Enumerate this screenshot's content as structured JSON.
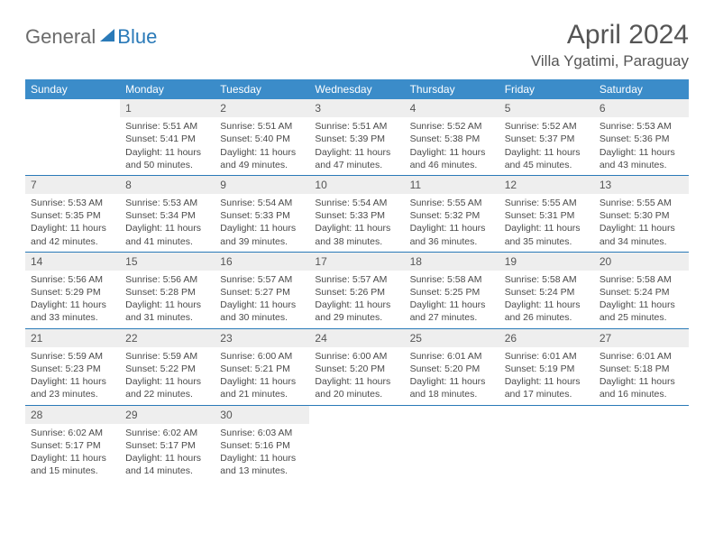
{
  "brand": {
    "part1": "General",
    "part2": "Blue"
  },
  "title": "April 2024",
  "location": "Villa Ygatimi, Paraguay",
  "colors": {
    "header_bg": "#3b8cc9",
    "header_text": "#ffffff",
    "row_divider": "#2a7ab8",
    "daynum_bg": "#eeeeee",
    "text": "#4a4a4a",
    "brand_gray": "#6b6b6b",
    "brand_blue": "#2a7ab8",
    "page_bg": "#ffffff"
  },
  "typography": {
    "title_fontsize": 30,
    "location_fontsize": 17,
    "header_fontsize": 12,
    "daynum_fontsize": 12,
    "cell_fontsize": 10.5
  },
  "layout": {
    "columns": 7,
    "rows": 5,
    "first_weekday_index": 1
  },
  "weekdays": [
    "Sunday",
    "Monday",
    "Tuesday",
    "Wednesday",
    "Thursday",
    "Friday",
    "Saturday"
  ],
  "days": [
    {
      "n": 1,
      "sunrise": "5:51 AM",
      "sunset": "5:41 PM",
      "daylight": "11 hours and 50 minutes."
    },
    {
      "n": 2,
      "sunrise": "5:51 AM",
      "sunset": "5:40 PM",
      "daylight": "11 hours and 49 minutes."
    },
    {
      "n": 3,
      "sunrise": "5:51 AM",
      "sunset": "5:39 PM",
      "daylight": "11 hours and 47 minutes."
    },
    {
      "n": 4,
      "sunrise": "5:52 AM",
      "sunset": "5:38 PM",
      "daylight": "11 hours and 46 minutes."
    },
    {
      "n": 5,
      "sunrise": "5:52 AM",
      "sunset": "5:37 PM",
      "daylight": "11 hours and 45 minutes."
    },
    {
      "n": 6,
      "sunrise": "5:53 AM",
      "sunset": "5:36 PM",
      "daylight": "11 hours and 43 minutes."
    },
    {
      "n": 7,
      "sunrise": "5:53 AM",
      "sunset": "5:35 PM",
      "daylight": "11 hours and 42 minutes."
    },
    {
      "n": 8,
      "sunrise": "5:53 AM",
      "sunset": "5:34 PM",
      "daylight": "11 hours and 41 minutes."
    },
    {
      "n": 9,
      "sunrise": "5:54 AM",
      "sunset": "5:33 PM",
      "daylight": "11 hours and 39 minutes."
    },
    {
      "n": 10,
      "sunrise": "5:54 AM",
      "sunset": "5:33 PM",
      "daylight": "11 hours and 38 minutes."
    },
    {
      "n": 11,
      "sunrise": "5:55 AM",
      "sunset": "5:32 PM",
      "daylight": "11 hours and 36 minutes."
    },
    {
      "n": 12,
      "sunrise": "5:55 AM",
      "sunset": "5:31 PM",
      "daylight": "11 hours and 35 minutes."
    },
    {
      "n": 13,
      "sunrise": "5:55 AM",
      "sunset": "5:30 PM",
      "daylight": "11 hours and 34 minutes."
    },
    {
      "n": 14,
      "sunrise": "5:56 AM",
      "sunset": "5:29 PM",
      "daylight": "11 hours and 33 minutes."
    },
    {
      "n": 15,
      "sunrise": "5:56 AM",
      "sunset": "5:28 PM",
      "daylight": "11 hours and 31 minutes."
    },
    {
      "n": 16,
      "sunrise": "5:57 AM",
      "sunset": "5:27 PM",
      "daylight": "11 hours and 30 minutes."
    },
    {
      "n": 17,
      "sunrise": "5:57 AM",
      "sunset": "5:26 PM",
      "daylight": "11 hours and 29 minutes."
    },
    {
      "n": 18,
      "sunrise": "5:58 AM",
      "sunset": "5:25 PM",
      "daylight": "11 hours and 27 minutes."
    },
    {
      "n": 19,
      "sunrise": "5:58 AM",
      "sunset": "5:24 PM",
      "daylight": "11 hours and 26 minutes."
    },
    {
      "n": 20,
      "sunrise": "5:58 AM",
      "sunset": "5:24 PM",
      "daylight": "11 hours and 25 minutes."
    },
    {
      "n": 21,
      "sunrise": "5:59 AM",
      "sunset": "5:23 PM",
      "daylight": "11 hours and 23 minutes."
    },
    {
      "n": 22,
      "sunrise": "5:59 AM",
      "sunset": "5:22 PM",
      "daylight": "11 hours and 22 minutes."
    },
    {
      "n": 23,
      "sunrise": "6:00 AM",
      "sunset": "5:21 PM",
      "daylight": "11 hours and 21 minutes."
    },
    {
      "n": 24,
      "sunrise": "6:00 AM",
      "sunset": "5:20 PM",
      "daylight": "11 hours and 20 minutes."
    },
    {
      "n": 25,
      "sunrise": "6:01 AM",
      "sunset": "5:20 PM",
      "daylight": "11 hours and 18 minutes."
    },
    {
      "n": 26,
      "sunrise": "6:01 AM",
      "sunset": "5:19 PM",
      "daylight": "11 hours and 17 minutes."
    },
    {
      "n": 27,
      "sunrise": "6:01 AM",
      "sunset": "5:18 PM",
      "daylight": "11 hours and 16 minutes."
    },
    {
      "n": 28,
      "sunrise": "6:02 AM",
      "sunset": "5:17 PM",
      "daylight": "11 hours and 15 minutes."
    },
    {
      "n": 29,
      "sunrise": "6:02 AM",
      "sunset": "5:17 PM",
      "daylight": "11 hours and 14 minutes."
    },
    {
      "n": 30,
      "sunrise": "6:03 AM",
      "sunset": "5:16 PM",
      "daylight": "11 hours and 13 minutes."
    }
  ],
  "labels": {
    "sunrise": "Sunrise:",
    "sunset": "Sunset:",
    "daylight": "Daylight:"
  }
}
